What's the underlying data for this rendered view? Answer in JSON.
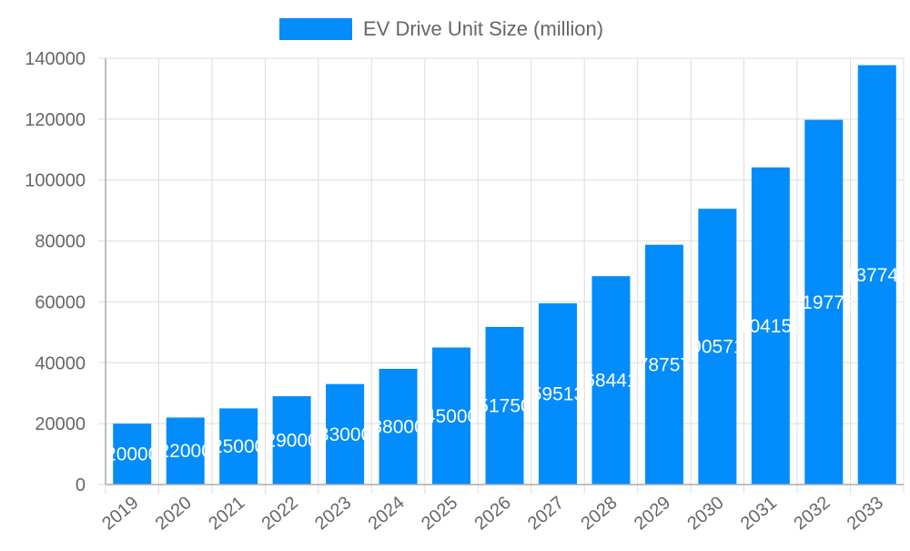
{
  "chart_data": {
    "type": "bar",
    "title": "",
    "xlabel": "",
    "ylabel": "",
    "legend": {
      "position": "top",
      "entries": [
        "EV Drive Unit Size (million)"
      ]
    },
    "categories": [
      "2019",
      "2020",
      "2021",
      "2022",
      "2023",
      "2024",
      "2025",
      "2026",
      "2027",
      "2028",
      "2029",
      "2030",
      "2031",
      "2032",
      "2033"
    ],
    "series": [
      {
        "name": "EV Drive Unit Size (million)",
        "values": [
          20000,
          22000,
          25000,
          29000,
          33000,
          38000,
          45000,
          51750,
          59513,
          68441,
          78757,
          90571,
          104155,
          119778,
          137745
        ],
        "color": "#038cfc"
      }
    ],
    "ylim": [
      0,
      140000
    ],
    "yticks": [
      "0",
      "20000",
      "40000",
      "60000",
      "80000",
      "100000",
      "120000",
      "140000"
    ],
    "grid": true,
    "data_labels": true
  }
}
